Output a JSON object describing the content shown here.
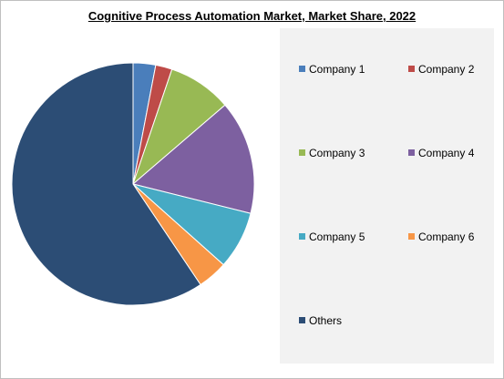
{
  "chart_data": {
    "type": "pie",
    "title": "Cognitive Process Automation Market, Market Share, 2022",
    "categories": [
      "Company 1",
      "Company 2",
      "Company 3",
      "Company 4",
      "Company 5",
      "Company 6",
      "Others"
    ],
    "values": [
      3,
      2.2,
      8.5,
      15.2,
      7.7,
      4,
      59.4
    ],
    "colors": [
      "#4a7ebb",
      "#be4b48",
      "#98b954",
      "#7d60a0",
      "#46aac4",
      "#f79646",
      "#2c4d75"
    ],
    "legend": "right"
  }
}
